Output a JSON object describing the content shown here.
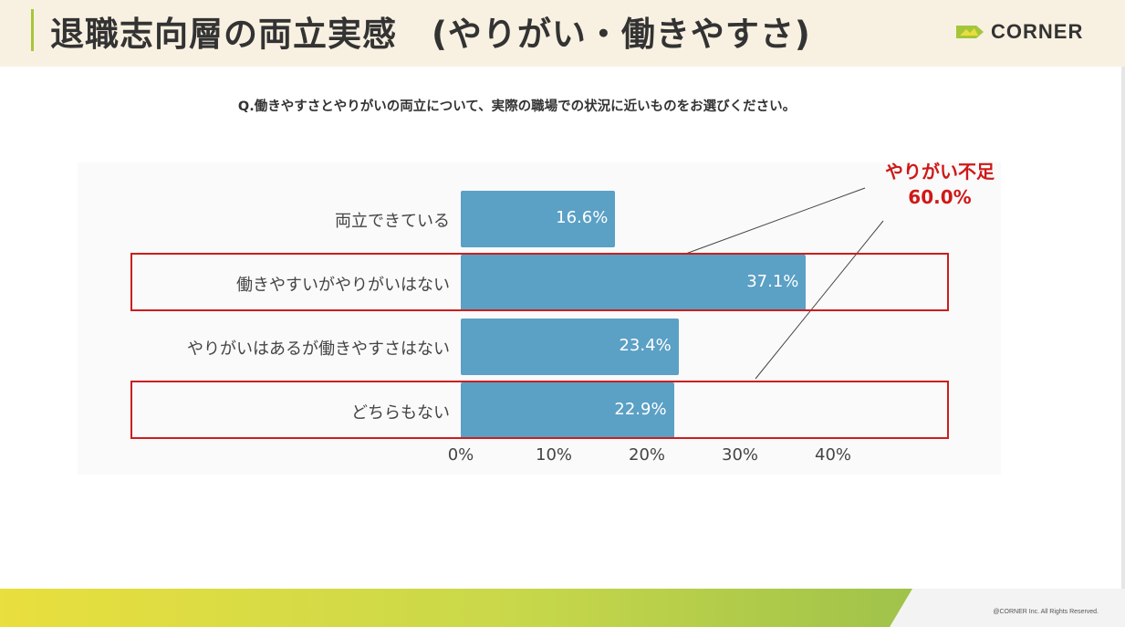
{
  "header": {
    "title": "退職志向層の両立実感　(やりがい・働きやすさ)",
    "logo_text": "CORNER",
    "background": "#f8f1e1",
    "accent_color": "#a5c63b"
  },
  "question": "Q.働きやすさとやりがいの両立について、実際の職場での状況に近いものをお選びください。",
  "chart_data": {
    "type": "bar",
    "orientation": "horizontal",
    "categories": [
      "両立できている",
      "働きやすいがやりがいはない",
      "やりがいはあるが働きやすさはない",
      "どちらもない"
    ],
    "values": [
      16.6,
      37.1,
      23.4,
      22.9
    ],
    "value_labels": [
      "16.6%",
      "37.1%",
      "23.4%",
      "22.9%"
    ],
    "xticks": [
      "0%",
      "10%",
      "20%",
      "30%",
      "40%"
    ],
    "xlim": [
      0,
      40
    ],
    "grid": false,
    "bar_color": "#5ba0c5",
    "highlighted_categories": [
      "働きやすいがやりがいはない",
      "どちらもない"
    ],
    "highlight_color": "#cc1e1e",
    "annotation": {
      "line1": "やりがい不足",
      "line2": "60.0%",
      "color": "#d01818"
    }
  },
  "footer": {
    "copyright": "@CORNER Inc. All Rights Reserved."
  }
}
